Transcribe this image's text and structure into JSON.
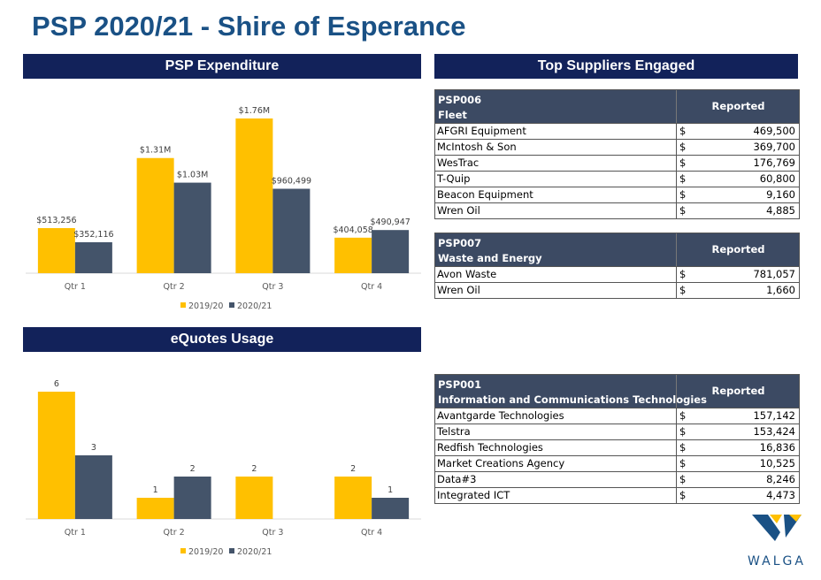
{
  "title": "PSP 2020/21 - Shire of Esperance",
  "banners": {
    "expenditure": "PSP Expenditure",
    "suppliers": "Top Suppliers Engaged",
    "equotes": "eQuotes Usage"
  },
  "colors": {
    "series_2019": "#ffc000",
    "series_2020": "#44546a",
    "banner": "#12225a",
    "title": "#1a5185",
    "table_header": "#3c4a63"
  },
  "chart_data": [
    {
      "type": "bar",
      "title": "PSP Expenditure",
      "categories": [
        "Qtr 1",
        "Qtr 2",
        "Qtr 3",
        "Qtr 4"
      ],
      "series": [
        {
          "name": "2019/20",
          "values": [
            513256,
            1310000,
            1760000,
            404058
          ],
          "labels": [
            "$513,256",
            "$1.31M",
            "$1.76M",
            "$404,058"
          ]
        },
        {
          "name": "2020/21",
          "values": [
            352116,
            1030000,
            960499,
            490947
          ],
          "labels": [
            "$352,116",
            "$1.03M",
            "$960,499",
            "$490,947"
          ]
        }
      ],
      "ylim": [
        0,
        1760000
      ],
      "legend": "bottom"
    },
    {
      "type": "bar",
      "title": "eQuotes Usage",
      "categories": [
        "Qtr 1",
        "Qtr 2",
        "Qtr 3",
        "Qtr 4"
      ],
      "series": [
        {
          "name": "2019/20",
          "values": [
            6,
            1,
            2,
            2
          ],
          "labels": [
            "6",
            "1",
            "2",
            "2"
          ]
        },
        {
          "name": "2020/21",
          "values": [
            3,
            2,
            0,
            1
          ],
          "labels": [
            "3",
            "2",
            "",
            "1"
          ]
        }
      ],
      "ylim": [
        0,
        6
      ],
      "legend": "bottom"
    }
  ],
  "tables": [
    {
      "code": "PSP006",
      "name": "Fleet",
      "header": "Reported Expenditure",
      "rows": [
        {
          "supplier": "AFGRI Equipment",
          "currency": "$",
          "amount": "469,500"
        },
        {
          "supplier": "McIntosh & Son",
          "currency": "$",
          "amount": "369,700"
        },
        {
          "supplier": "WesTrac",
          "currency": "$",
          "amount": "176,769"
        },
        {
          "supplier": "T-Quip",
          "currency": "$",
          "amount": "60,800"
        },
        {
          "supplier": "Beacon Equipment",
          "currency": "$",
          "amount": "9,160"
        },
        {
          "supplier": "Wren Oil",
          "currency": "$",
          "amount": "4,885"
        }
      ]
    },
    {
      "code": "PSP007",
      "name": "Waste and Energy",
      "header": "Reported Expenditure",
      "rows": [
        {
          "supplier": "Avon Waste",
          "currency": "$",
          "amount": "781,057"
        },
        {
          "supplier": "Wren Oil",
          "currency": "$",
          "amount": "1,660"
        }
      ]
    },
    {
      "code": "PSP001",
      "name": "Information and Communications Technologies",
      "header": "Reported Expenditure",
      "rows": [
        {
          "supplier": "Avantgarde Technologies",
          "currency": "$",
          "amount": "157,142"
        },
        {
          "supplier": "Telstra",
          "currency": "$",
          "amount": "153,424"
        },
        {
          "supplier": "Redfish Technologies",
          "currency": "$",
          "amount": "16,836"
        },
        {
          "supplier": "Market Creations Agency",
          "currency": "$",
          "amount": "10,525"
        },
        {
          "supplier": "Data#3",
          "currency": "$",
          "amount": "8,246"
        },
        {
          "supplier": "Integrated ICT",
          "currency": "$",
          "amount": "4,473"
        }
      ]
    }
  ],
  "logo": {
    "text": "WALGA",
    "icon": "walga-logo-icon"
  }
}
